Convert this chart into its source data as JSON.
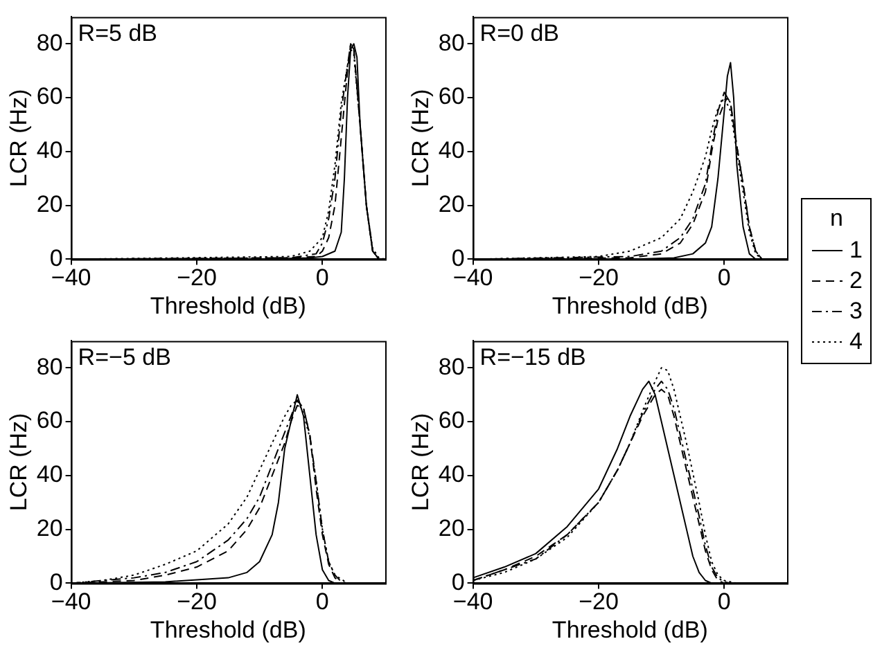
{
  "chart_data": [
    {
      "type": "line",
      "annotations": [
        "R=5 dB"
      ],
      "xlabel": "Threshold (dB)",
      "ylabel": "LCR (Hz)",
      "xlim": [
        -40,
        10
      ],
      "ylim": [
        0,
        90
      ],
      "xticks": [
        -40,
        -20,
        0
      ],
      "yticks": [
        0,
        20,
        40,
        60,
        80
      ],
      "grid": false,
      "legend": false,
      "series": [
        {
          "color": "#000000",
          "line_style": "solid",
          "x": [
            -40,
            -10,
            -2,
            0,
            2,
            3,
            3.5,
            4,
            4.5,
            5,
            5.5,
            6,
            7,
            8,
            9,
            10
          ],
          "values": [
            0,
            0,
            0.5,
            1,
            3,
            10,
            30,
            60,
            78,
            80,
            75,
            50,
            20,
            3,
            0,
            0
          ]
        },
        {
          "color": "#000000",
          "line_style": "dashed",
          "x": [
            -40,
            -5,
            -1,
            0,
            1,
            2,
            3,
            4,
            4.5,
            5,
            6,
            7,
            8,
            9,
            10
          ],
          "values": [
            0,
            0.5,
            1,
            3,
            8,
            20,
            45,
            70,
            80,
            78,
            50,
            20,
            3,
            0,
            0
          ]
        },
        {
          "color": "#000000",
          "line_style": "dashdot",
          "x": [
            -40,
            -5,
            -1,
            0,
            1,
            2,
            3,
            4,
            4.5,
            5,
            6,
            7,
            8,
            9,
            10
          ],
          "values": [
            0,
            0.5,
            2,
            6,
            15,
            30,
            55,
            72,
            80,
            78,
            50,
            20,
            3,
            0,
            0
          ]
        },
        {
          "color": "#000000",
          "line_style": "dotted",
          "x": [
            -40,
            -5,
            -2,
            0,
            1,
            2,
            3,
            4,
            4.5,
            5,
            6,
            7,
            8,
            9,
            10
          ],
          "values": [
            0,
            1,
            3,
            8,
            18,
            35,
            58,
            72,
            78,
            76,
            50,
            20,
            4,
            0.5,
            0
          ]
        }
      ]
    },
    {
      "type": "line",
      "annotations": [
        "R=0 dB"
      ],
      "xlabel": "Threshold (dB)",
      "ylabel": "LCR (Hz)",
      "xlim": [
        -40,
        10
      ],
      "ylim": [
        0,
        90
      ],
      "xticks": [
        -40,
        -20,
        0
      ],
      "yticks": [
        0,
        20,
        40,
        60,
        80
      ],
      "grid": false,
      "legend": "right",
      "legend_title": "n",
      "series": [
        {
          "name": "1",
          "color": "#000000",
          "line_style": "solid",
          "x": [
            -40,
            -15,
            -8,
            -5,
            -3,
            -2,
            -1,
            0,
            0.5,
            1,
            1.5,
            2,
            3,
            4,
            5,
            10
          ],
          "values": [
            0,
            0,
            0.5,
            2,
            6,
            12,
            30,
            55,
            68,
            73,
            60,
            35,
            12,
            2,
            0,
            0
          ]
        },
        {
          "name": "2",
          "color": "#000000",
          "line_style": "dashed",
          "x": [
            -40,
            -15,
            -10,
            -7,
            -5,
            -3,
            -2,
            -1,
            0,
            0.5,
            1,
            2,
            3,
            4,
            5,
            6,
            10
          ],
          "values": [
            0,
            0.5,
            2,
            6,
            13,
            25,
            40,
            52,
            58,
            60,
            58,
            42,
            28,
            12,
            3,
            0,
            0
          ]
        },
        {
          "name": "3",
          "color": "#000000",
          "line_style": "dashdot",
          "x": [
            -40,
            -15,
            -10,
            -7,
            -5,
            -3,
            -2,
            -1,
            0,
            1,
            2,
            3,
            4,
            5,
            6,
            10
          ],
          "values": [
            0,
            1,
            3,
            8,
            15,
            28,
            42,
            55,
            62,
            58,
            42,
            28,
            12,
            3,
            0,
            0
          ]
        },
        {
          "name": "4",
          "color": "#000000",
          "line_style": "dotted",
          "x": [
            -40,
            -20,
            -15,
            -10,
            -7,
            -5,
            -3,
            -2,
            -1,
            0,
            1,
            2,
            3,
            4,
            5,
            6,
            10
          ],
          "values": [
            0,
            1,
            3,
            8,
            15,
            25,
            38,
            48,
            56,
            60,
            55,
            40,
            25,
            10,
            2,
            0,
            0
          ]
        }
      ]
    },
    {
      "type": "line",
      "annotations": [
        "R=−5 dB"
      ],
      "xlabel": "Threshold (dB)",
      "ylabel": "LCR (Hz)",
      "xlim": [
        -40,
        10
      ],
      "ylim": [
        0,
        90
      ],
      "xticks": [
        -40,
        -20,
        0
      ],
      "yticks": [
        0,
        20,
        40,
        60,
        80
      ],
      "grid": false,
      "legend": false,
      "series": [
        {
          "color": "#000000",
          "line_style": "solid",
          "x": [
            -40,
            -25,
            -15,
            -12,
            -10,
            -8,
            -7,
            -6,
            -5,
            -4,
            -3,
            -2,
            -1,
            0,
            1,
            2,
            10
          ],
          "values": [
            0,
            0.5,
            2,
            4,
            8,
            18,
            30,
            50,
            60,
            70,
            62,
            40,
            18,
            5,
            1,
            0,
            0
          ]
        },
        {
          "color": "#000000",
          "line_style": "dashed",
          "x": [
            -40,
            -30,
            -25,
            -20,
            -15,
            -12,
            -10,
            -8,
            -6,
            -5,
            -4,
            -3,
            -2,
            -1,
            0,
            1,
            2,
            3,
            10
          ],
          "values": [
            0,
            1,
            3,
            6,
            12,
            20,
            28,
            40,
            52,
            60,
            66,
            65,
            55,
            35,
            18,
            7,
            2,
            0,
            0
          ]
        },
        {
          "color": "#000000",
          "line_style": "dashdot",
          "x": [
            -40,
            -30,
            -25,
            -20,
            -15,
            -12,
            -10,
            -8,
            -6,
            -5,
            -4,
            -3,
            -2,
            -1,
            0,
            1,
            2,
            3,
            4,
            10
          ],
          "values": [
            0,
            2,
            4,
            8,
            16,
            24,
            32,
            44,
            56,
            62,
            68,
            65,
            55,
            38,
            20,
            8,
            3,
            0.5,
            0,
            0
          ]
        },
        {
          "color": "#000000",
          "line_style": "dotted",
          "x": [
            -40,
            -35,
            -30,
            -25,
            -20,
            -15,
            -12,
            -10,
            -8,
            -6,
            -5,
            -4,
            -3,
            -2,
            -1,
            0,
            1,
            2,
            4,
            10
          ],
          "values": [
            0,
            1,
            3,
            7,
            12,
            22,
            32,
            42,
            52,
            62,
            66,
            68,
            63,
            54,
            38,
            20,
            8,
            3,
            0,
            0
          ]
        }
      ]
    },
    {
      "type": "line",
      "annotations": [
        "R=−15 dB"
      ],
      "xlabel": "Threshold (dB)",
      "ylabel": "LCR (Hz)",
      "xlim": [
        -40,
        10
      ],
      "ylim": [
        0,
        90
      ],
      "xticks": [
        -40,
        -20,
        0
      ],
      "yticks": [
        0,
        20,
        40,
        60,
        80
      ],
      "grid": false,
      "legend": false,
      "series": [
        {
          "color": "#000000",
          "line_style": "solid",
          "x": [
            -40,
            -35,
            -30,
            -25,
            -20,
            -17,
            -15,
            -13,
            -12,
            -11,
            -10,
            -8,
            -6,
            -5,
            -4,
            -3,
            -2,
            10
          ],
          "values": [
            2,
            6,
            11,
            21,
            35,
            50,
            62,
            72,
            75,
            70,
            60,
            40,
            20,
            10,
            4,
            1,
            0,
            0
          ]
        },
        {
          "color": "#000000",
          "line_style": "dashed",
          "x": [
            -40,
            -35,
            -30,
            -25,
            -20,
            -17,
            -15,
            -13,
            -11,
            -10,
            -9,
            -8,
            -6,
            -4,
            -3,
            -2,
            -1,
            0,
            10
          ],
          "values": [
            1,
            5,
            10,
            18,
            30,
            42,
            52,
            62,
            70,
            72,
            70,
            62,
            42,
            22,
            12,
            5,
            1,
            0,
            0
          ]
        },
        {
          "color": "#000000",
          "line_style": "dashdot",
          "x": [
            -40,
            -35,
            -30,
            -25,
            -20,
            -17,
            -15,
            -13,
            -11,
            -10,
            -9,
            -8,
            -6,
            -4,
            -3,
            -2,
            -1,
            0,
            1,
            10
          ],
          "values": [
            1,
            5,
            9,
            18,
            30,
            42,
            52,
            63,
            72,
            75,
            72,
            65,
            45,
            25,
            14,
            6,
            2,
            0.5,
            0,
            0
          ]
        },
        {
          "color": "#000000",
          "line_style": "dotted",
          "x": [
            -40,
            -35,
            -30,
            -25,
            -20,
            -17,
            -15,
            -13,
            -11,
            -10,
            -9,
            -8,
            -6,
            -4,
            -3,
            -2,
            -1,
            0,
            2,
            10
          ],
          "values": [
            1,
            4,
            9,
            17,
            30,
            42,
            52,
            64,
            75,
            80,
            79,
            72,
            52,
            30,
            18,
            8,
            3,
            1,
            0,
            0
          ]
        }
      ]
    }
  ]
}
